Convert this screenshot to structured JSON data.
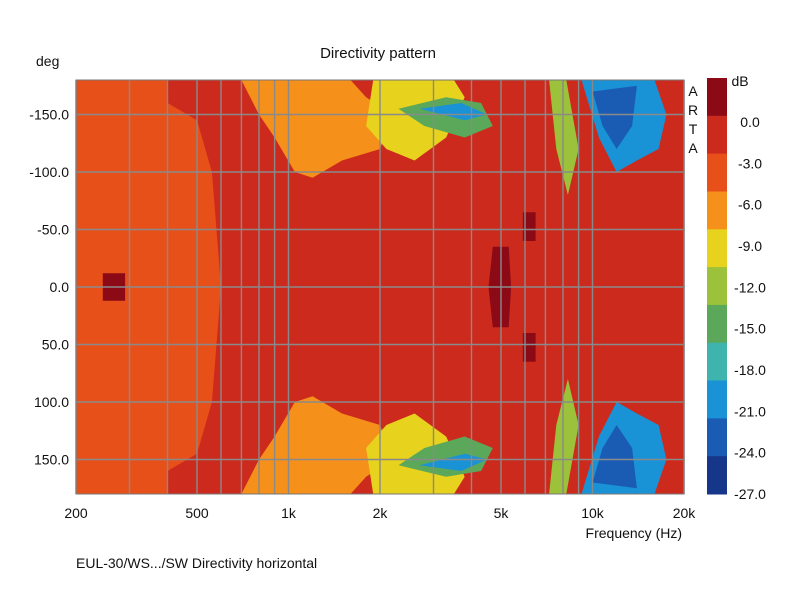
{
  "chart_data": {
    "type": "heatmap",
    "title": "Directivity pattern",
    "ylabel": "deg",
    "xlabel": "Frequency (Hz)",
    "brand": "ARTA",
    "footer": "EUL-30/WS.../SW Directivity horizontal",
    "x_scale": "log",
    "xlim": [
      200,
      20000
    ],
    "ylim": [
      -180,
      180
    ],
    "y_inverted": true,
    "grid": true,
    "x_ticks": [
      {
        "value": 200,
        "label": "200"
      },
      {
        "value": 500,
        "label": "500"
      },
      {
        "value": 1000,
        "label": "1k"
      },
      {
        "value": 2000,
        "label": "2k"
      },
      {
        "value": 5000,
        "label": "5k"
      },
      {
        "value": 10000,
        "label": "10k"
      },
      {
        "value": 20000,
        "label": "20k"
      }
    ],
    "y_ticks": [
      {
        "value": -150,
        "label": "-150.0"
      },
      {
        "value": -100,
        "label": "-100.0"
      },
      {
        "value": -50,
        "label": "-50.0"
      },
      {
        "value": 0,
        "label": "0.0"
      },
      {
        "value": 50,
        "label": "50.0"
      },
      {
        "value": 100,
        "label": "100.0"
      },
      {
        "value": 150,
        "label": "150.0"
      }
    ],
    "colorbar": {
      "unit": "dB",
      "range": [
        -27,
        3
      ],
      "labels": [
        "0.0",
        "-3.0",
        "-6.0",
        "-9.0",
        "-12.0",
        "-15.0",
        "-18.0",
        "-21.0",
        "-24.0",
        "-27.0"
      ],
      "colors": [
        "#8b0a16",
        "#cd2a1e",
        "#e8501a",
        "#f5901a",
        "#e7d21e",
        "#9bc23a",
        "#5ba85a",
        "#3fb4ae",
        "#1a92d6",
        "#1a5cb4",
        "#16368a"
      ]
    },
    "contour_levels_db": {
      "0": -1.5,
      "1": -4.5,
      "2": -7.5,
      "3": -10.5,
      "4": -13.5,
      "5": -16.5,
      "6": -19.5,
      "7": -22.5,
      "8": -25.5,
      "9": -28
    },
    "contours": [
      {
        "level": 2,
        "points": [
          [
            200,
            -180
          ],
          [
            400,
            -180
          ],
          [
            400,
            -160
          ],
          [
            500,
            -145
          ],
          [
            560,
            -100
          ],
          [
            600,
            0
          ],
          [
            560,
            100
          ],
          [
            500,
            145
          ],
          [
            400,
            160
          ],
          [
            400,
            180
          ],
          [
            200,
            180
          ]
        ]
      },
      {
        "level": 0,
        "points": [
          [
            245,
            -12
          ],
          [
            290,
            -12
          ],
          [
            290,
            12
          ],
          [
            245,
            12
          ]
        ]
      },
      {
        "level": 0,
        "points": [
          [
            4700,
            -35
          ],
          [
            5300,
            -35
          ],
          [
            5400,
            0
          ],
          [
            5300,
            35
          ],
          [
            4700,
            35
          ],
          [
            4550,
            0
          ]
        ]
      },
      {
        "level": 0,
        "points": [
          [
            5900,
            -65
          ],
          [
            6500,
            -65
          ],
          [
            6500,
            -40
          ],
          [
            5900,
            -40
          ]
        ]
      },
      {
        "level": 0,
        "points": [
          [
            5900,
            40
          ],
          [
            6500,
            40
          ],
          [
            6500,
            65
          ],
          [
            5900,
            65
          ]
        ]
      },
      {
        "level": 3,
        "points": [
          [
            700,
            -180
          ],
          [
            1600,
            -180
          ],
          [
            1800,
            -165
          ],
          [
            2200,
            -150
          ],
          [
            2000,
            -120
          ],
          [
            1500,
            -110
          ],
          [
            1200,
            -95
          ],
          [
            1050,
            -100
          ],
          [
            900,
            -130
          ],
          [
            800,
            -150
          ]
        ]
      },
      {
        "level": 3,
        "points": [
          [
            700,
            180
          ],
          [
            1600,
            180
          ],
          [
            1800,
            165
          ],
          [
            2200,
            150
          ],
          [
            2000,
            120
          ],
          [
            1500,
            110
          ],
          [
            1200,
            95
          ],
          [
            1050,
            100
          ],
          [
            900,
            130
          ],
          [
            800,
            150
          ]
        ]
      },
      {
        "level": 4,
        "points": [
          [
            1900,
            -180
          ],
          [
            3500,
            -180
          ],
          [
            3800,
            -165
          ],
          [
            3300,
            -130
          ],
          [
            2600,
            -110
          ],
          [
            2100,
            -120
          ],
          [
            1800,
            -140
          ]
        ]
      },
      {
        "level": 4,
        "points": [
          [
            1900,
            180
          ],
          [
            3500,
            180
          ],
          [
            3800,
            165
          ],
          [
            3300,
            130
          ],
          [
            2600,
            110
          ],
          [
            2100,
            120
          ],
          [
            1800,
            140
          ]
        ]
      },
      {
        "level": 6,
        "points": [
          [
            2300,
            -155
          ],
          [
            3300,
            -165
          ],
          [
            4300,
            -160
          ],
          [
            4700,
            -140
          ],
          [
            3800,
            -130
          ],
          [
            2800,
            -140
          ]
        ]
      },
      {
        "level": 6,
        "points": [
          [
            2300,
            155
          ],
          [
            3300,
            165
          ],
          [
            4300,
            160
          ],
          [
            4700,
            140
          ],
          [
            3800,
            130
          ],
          [
            2800,
            140
          ]
        ]
      },
      {
        "level": 8,
        "points": [
          [
            2700,
            -155
          ],
          [
            3700,
            -160
          ],
          [
            4500,
            -150
          ],
          [
            3800,
            -145
          ]
        ]
      },
      {
        "level": 8,
        "points": [
          [
            2700,
            155
          ],
          [
            3700,
            160
          ],
          [
            4500,
            150
          ],
          [
            3800,
            145
          ]
        ]
      },
      {
        "level": 5,
        "points": [
          [
            7200,
            -180
          ],
          [
            8200,
            -180
          ],
          [
            9000,
            -120
          ],
          [
            8300,
            -80
          ],
          [
            7600,
            -120
          ]
        ]
      },
      {
        "level": 5,
        "points": [
          [
            7200,
            180
          ],
          [
            8200,
            180
          ],
          [
            9000,
            120
          ],
          [
            8300,
            80
          ],
          [
            7600,
            120
          ]
        ]
      },
      {
        "level": 8,
        "points": [
          [
            9200,
            -180
          ],
          [
            16000,
            -180
          ],
          [
            17500,
            -150
          ],
          [
            16500,
            -120
          ],
          [
            14000,
            -110
          ],
          [
            12000,
            -100
          ],
          [
            10500,
            -130
          ]
        ]
      },
      {
        "level": 8,
        "points": [
          [
            9200,
            180
          ],
          [
            16000,
            180
          ],
          [
            17500,
            150
          ],
          [
            16500,
            120
          ],
          [
            14000,
            110
          ],
          [
            12000,
            100
          ],
          [
            10500,
            130
          ]
        ]
      },
      {
        "level": 9,
        "points": [
          [
            10000,
            -170
          ],
          [
            14000,
            -175
          ],
          [
            13500,
            -140
          ],
          [
            12000,
            -120
          ],
          [
            10800,
            -140
          ]
        ]
      },
      {
        "level": 9,
        "points": [
          [
            10000,
            170
          ],
          [
            14000,
            175
          ],
          [
            13500,
            140
          ],
          [
            12000,
            120
          ],
          [
            10800,
            140
          ]
        ]
      }
    ]
  }
}
